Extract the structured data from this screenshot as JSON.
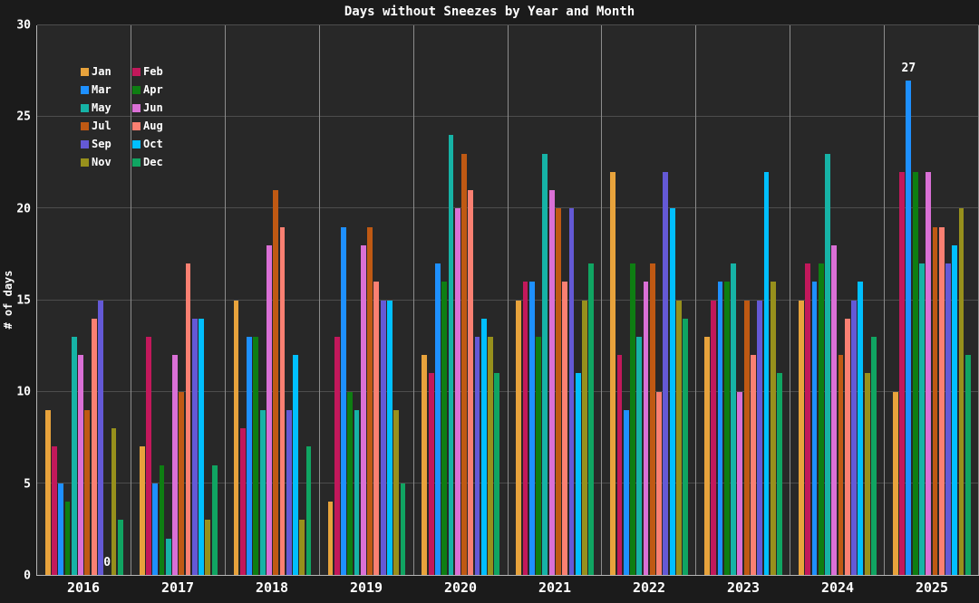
{
  "title": "Days without Sneezes by Year and Month",
  "chart_data": {
    "type": "bar",
    "title": "Days without Sneezes by Year and Month",
    "xlabel": "",
    "ylabel": "# of days",
    "ylim": [
      0,
      30
    ],
    "yticks": [
      0,
      5,
      10,
      15,
      20,
      25,
      30
    ],
    "grid": true,
    "legend_position": "upper-left",
    "legend_columns": 2,
    "categories": [
      "2016",
      "2017",
      "2018",
      "2019",
      "2020",
      "2021",
      "2022",
      "2023",
      "2024",
      "2025"
    ],
    "series": [
      {
        "name": "Jan",
        "color": "#e8a33c",
        "values": [
          9,
          7,
          15,
          4,
          12,
          15,
          22,
          13,
          15,
          10
        ]
      },
      {
        "name": "Feb",
        "color": "#c2185b",
        "values": [
          7,
          13,
          8,
          13,
          11,
          16,
          12,
          15,
          17,
          22
        ]
      },
      {
        "name": "Mar",
        "color": "#1e90ff",
        "values": [
          5,
          5,
          13,
          19,
          17,
          16,
          9,
          16,
          16,
          27
        ]
      },
      {
        "name": "Apr",
        "color": "#0e7e12",
        "values": [
          4,
          6,
          13,
          10,
          16,
          13,
          17,
          16,
          17,
          22
        ]
      },
      {
        "name": "May",
        "color": "#16b3a6",
        "values": [
          13,
          2,
          9,
          9,
          24,
          23,
          13,
          17,
          23,
          17
        ]
      },
      {
        "name": "Jun",
        "color": "#da70d6",
        "values": [
          12,
          12,
          18,
          18,
          20,
          21,
          16,
          10,
          18,
          22
        ]
      },
      {
        "name": "Jul",
        "color": "#bf5913",
        "values": [
          9,
          10,
          21,
          19,
          23,
          20,
          17,
          15,
          12,
          19
        ]
      },
      {
        "name": "Aug",
        "color": "#fa8072",
        "values": [
          14,
          17,
          19,
          16,
          21,
          16,
          10,
          12,
          14,
          19
        ]
      },
      {
        "name": "Sep",
        "color": "#6459d6",
        "values": [
          15,
          14,
          9,
          15,
          13,
          20,
          22,
          15,
          15,
          17
        ]
      },
      {
        "name": "Oct",
        "color": "#00bfff",
        "values": [
          0,
          14,
          12,
          15,
          14,
          11,
          20,
          22,
          16,
          18
        ]
      },
      {
        "name": "Nov",
        "color": "#97901c",
        "values": [
          8,
          3,
          3,
          9,
          13,
          15,
          15,
          16,
          11,
          20
        ]
      },
      {
        "name": "Dec",
        "color": "#10a562",
        "values": [
          3,
          6,
          7,
          5,
          11,
          17,
          14,
          11,
          13,
          12
        ]
      }
    ],
    "annotations": [
      {
        "category": "2016",
        "series": "Oct",
        "value": 0,
        "text": "0"
      },
      {
        "category": "2025",
        "series": "Mar",
        "value": 27,
        "text": "27"
      }
    ]
  },
  "colors": {
    "figure_background": "#1b1b1b",
    "plot_background": "#282828",
    "horizontal_grid": "#4d4d4d",
    "vertical_grid": "#8c8c8c",
    "axis_spine": "#b5b5b5",
    "text": "#ffffff"
  }
}
